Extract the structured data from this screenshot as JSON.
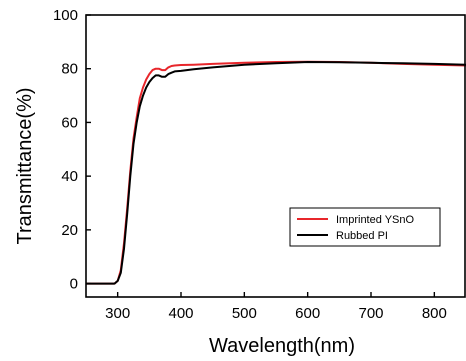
{
  "chart_data": {
    "type": "line",
    "title": "",
    "xlabel": "Wavelength(nm)",
    "ylabel": "Transmittance(%)",
    "xlim": [
      250,
      850
    ],
    "ylim": [
      -5,
      100
    ],
    "xticks": [
      "300",
      "400",
      "500",
      "600",
      "700",
      "800"
    ],
    "yticks": [
      "0",
      "20",
      "40",
      "60",
      "80",
      "100"
    ],
    "grid": false,
    "legend_position": "lower-right",
    "series": [
      {
        "name": "Imprinted YSnO",
        "color": "#e8262b",
        "x": [
          250,
          295,
          300,
          305,
          310,
          315,
          320,
          325,
          330,
          335,
          340,
          345,
          350,
          355,
          360,
          365,
          370,
          375,
          380,
          385,
          390,
          400,
          420,
          450,
          500,
          550,
          600,
          650,
          700,
          750,
          800,
          850
        ],
        "y": [
          0,
          0,
          1,
          5,
          15,
          28,
          42,
          54,
          62,
          69,
          73,
          76,
          78,
          79.5,
          80,
          80,
          79.5,
          79.5,
          80.5,
          81,
          81.2,
          81.4,
          81.5,
          81.8,
          82.2,
          82.5,
          82.6,
          82.5,
          82.2,
          81.8,
          81.5,
          81.2
        ]
      },
      {
        "name": "Rubbed PI",
        "color": "#000000",
        "x": [
          250,
          295,
          300,
          305,
          310,
          315,
          320,
          325,
          330,
          335,
          340,
          345,
          350,
          355,
          360,
          365,
          370,
          375,
          380,
          385,
          390,
          400,
          420,
          450,
          500,
          550,
          600,
          650,
          700,
          750,
          800,
          850
        ],
        "y": [
          0,
          0,
          1,
          4,
          13,
          26,
          40,
          52,
          60,
          66,
          70,
          73,
          75,
          76.5,
          77.5,
          77.5,
          77,
          77,
          78,
          78.5,
          79,
          79.2,
          79.8,
          80.5,
          81.5,
          82,
          82.5,
          82.4,
          82.2,
          82,
          81.8,
          81.5
        ]
      }
    ]
  }
}
